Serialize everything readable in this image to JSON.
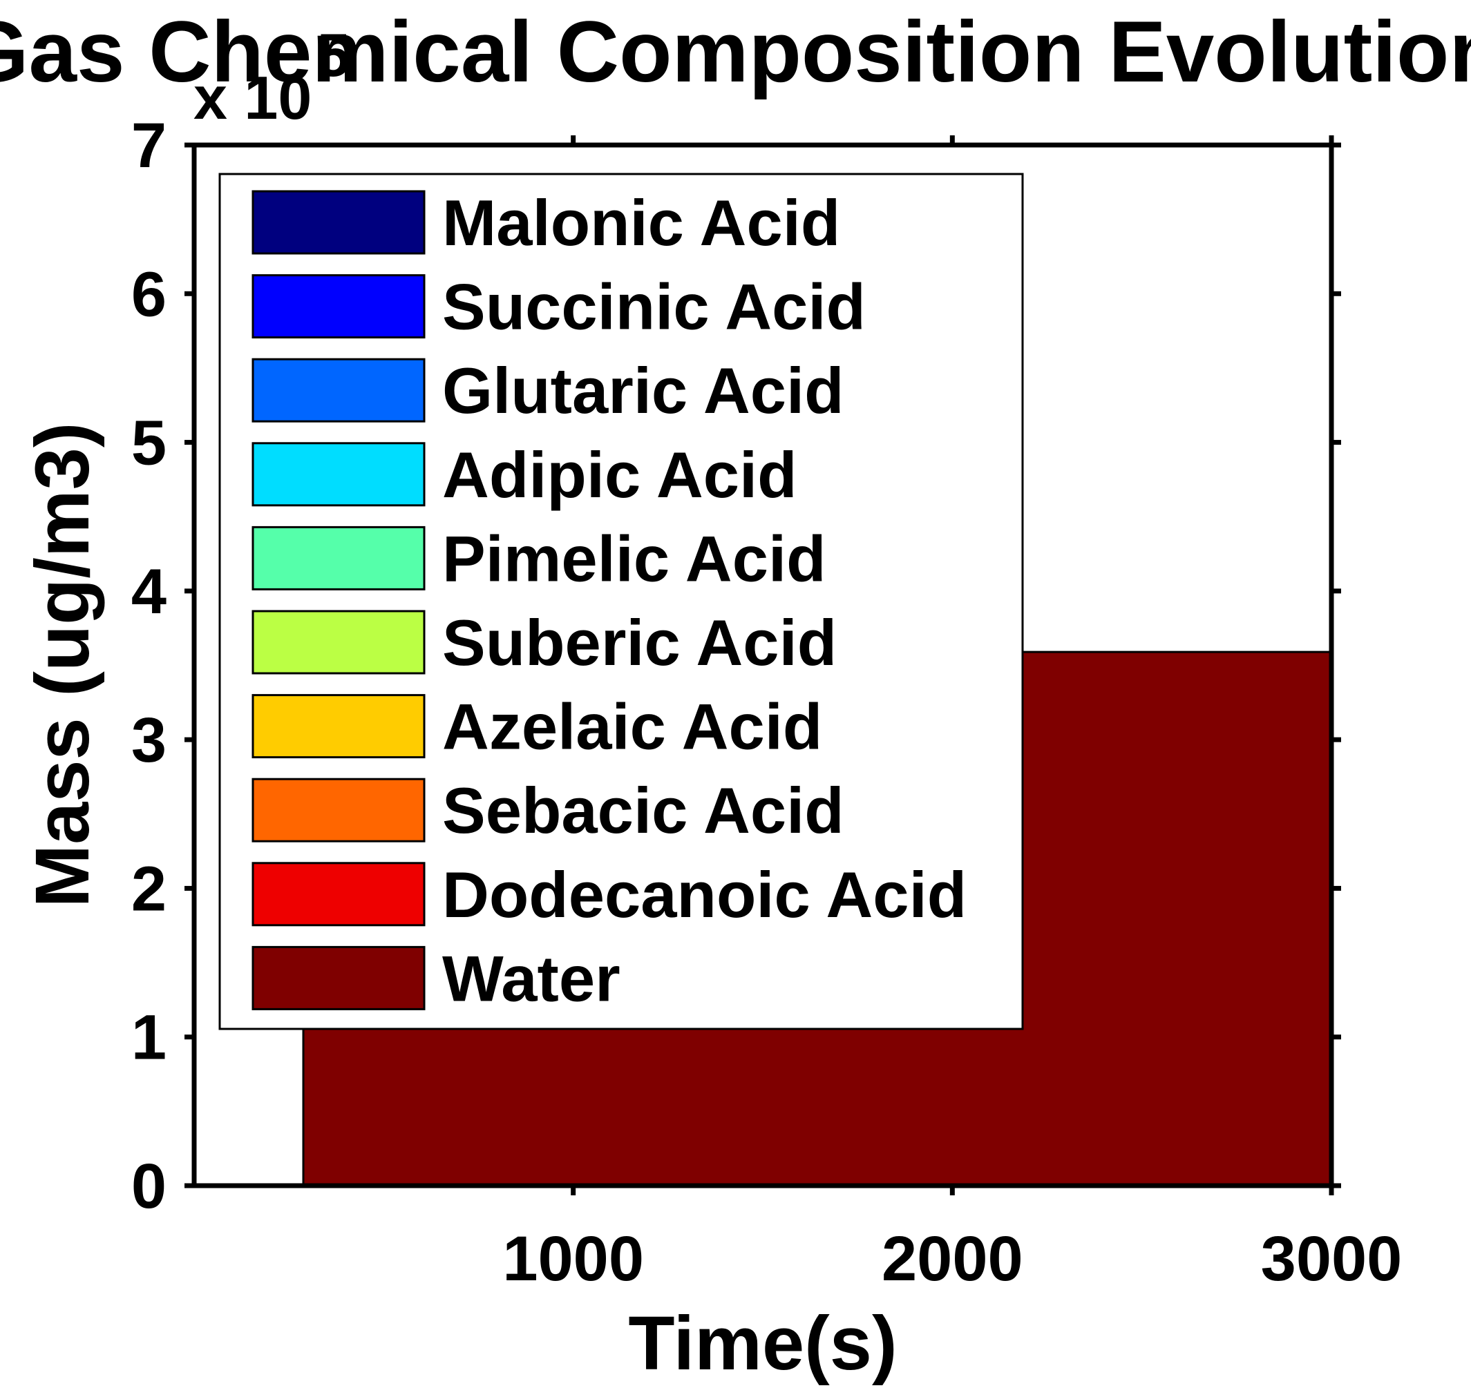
{
  "chart_data": {
    "type": "area",
    "title": "Gas Chemical Composition Evolution",
    "xlabel": "Time(s)",
    "ylabel": "Mass (ug/m3)",
    "y_multiplier_label": "x 10",
    "y_multiplier_exponent": "5",
    "xlim": [
      0,
      3000
    ],
    "ylim": [
      0,
      7
    ],
    "xticks": [
      1000,
      2000,
      3000
    ],
    "yticks": [
      0,
      1,
      2,
      3,
      4,
      5,
      6,
      7
    ],
    "x": [
      288,
      3000
    ],
    "stacked": true,
    "grid": false,
    "legend_position": "top-left",
    "series": [
      {
        "name": "Malonic Acid",
        "color": "#00007F",
        "values": [
          0,
          0
        ]
      },
      {
        "name": "Succinic Acid",
        "color": "#0000FF",
        "values": [
          0,
          0
        ]
      },
      {
        "name": "Glutaric Acid",
        "color": "#0066FF",
        "values": [
          0,
          0
        ]
      },
      {
        "name": "Adipic Acid",
        "color": "#00DDFF",
        "values": [
          0,
          0
        ]
      },
      {
        "name": "Pimelic Acid",
        "color": "#55FFAA",
        "values": [
          0,
          0
        ]
      },
      {
        "name": "Suberic Acid",
        "color": "#BBFF44",
        "values": [
          0,
          0
        ]
      },
      {
        "name": "Azelaic Acid",
        "color": "#FFCC00",
        "values": [
          0,
          0
        ]
      },
      {
        "name": "Sebacic Acid",
        "color": "#FF6600",
        "values": [
          0,
          0
        ]
      },
      {
        "name": "Dodecanoic Acid",
        "color": "#EE0000",
        "values": [
          0,
          0
        ]
      },
      {
        "name": "Water",
        "color": "#7F0000",
        "values": [
          3.59,
          3.59
        ]
      }
    ]
  }
}
